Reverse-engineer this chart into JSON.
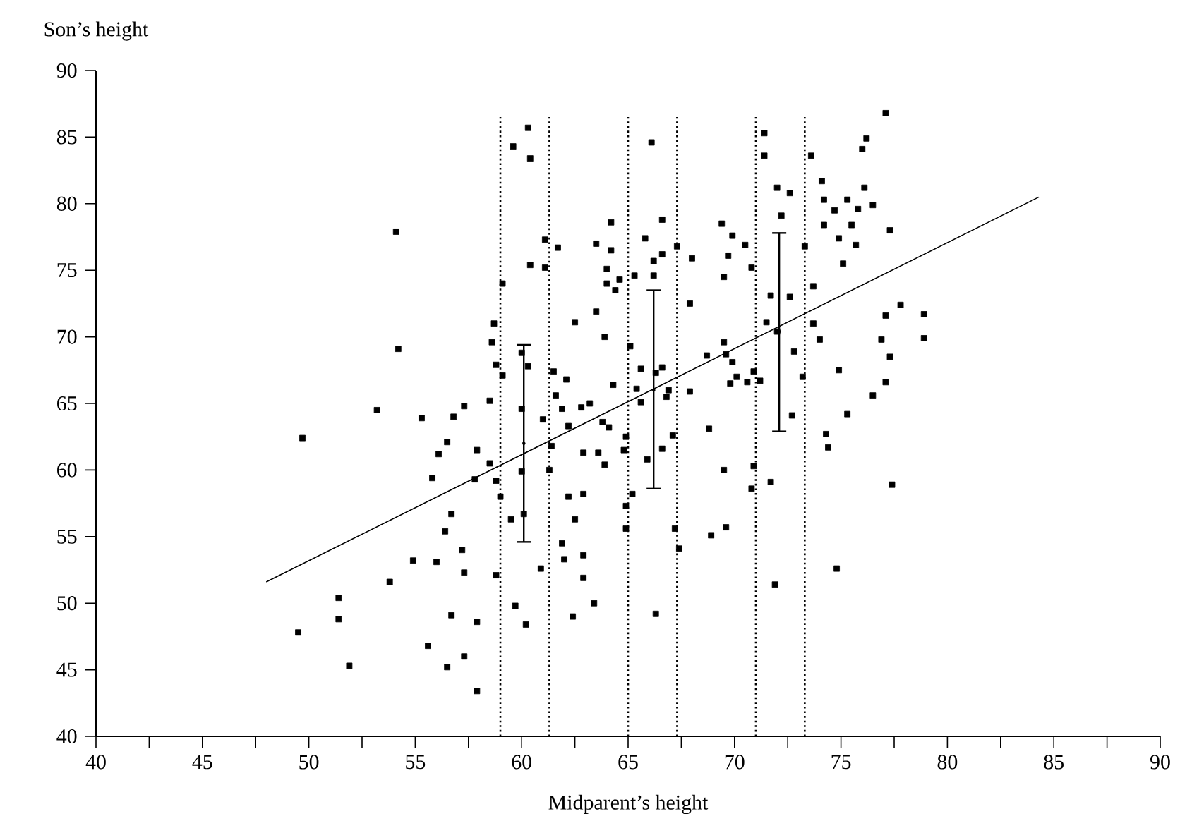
{
  "chart_data": {
    "type": "scatter",
    "xlabel": "Midparent’s height",
    "ylabel": "Son’s height",
    "xlim": [
      40,
      90
    ],
    "ylim": [
      40,
      90
    ],
    "xticks": [
      40,
      {
        "value": 42.5,
        "label": null
      },
      45,
      {
        "value": 47.5,
        "label": null
      },
      50,
      {
        "value": 52.5,
        "label": null
      },
      55,
      {
        "value": 57.5,
        "label": null
      },
      60,
      {
        "value": 62.5,
        "label": null
      },
      65,
      {
        "value": 67.5,
        "label": null
      },
      70,
      {
        "value": 72.5,
        "label": null
      },
      75,
      {
        "value": 77.5,
        "label": null
      },
      80,
      {
        "value": 82.5,
        "label": null
      },
      85,
      {
        "value": 87.5,
        "label": null
      },
      90
    ],
    "yticks": [
      40,
      45,
      50,
      55,
      60,
      65,
      70,
      75,
      80,
      85,
      90
    ],
    "grid": false,
    "series": [
      {
        "type": "scatter",
        "marker": "square",
        "color": "#000000",
        "x": [
          49.5,
          49.7,
          51.4,
          51.4,
          51.9,
          53.2,
          53.8,
          54.1,
          54.2,
          54.9,
          55.3,
          55.6,
          55.8,
          56.0,
          56.1,
          56.4,
          56.5,
          56.5,
          56.7,
          56.7,
          56.8,
          57.2,
          57.3,
          57.3,
          57.3,
          57.8,
          57.9,
          57.9,
          57.9,
          58.5,
          58.5,
          58.6,
          58.7,
          58.8,
          58.8,
          58.8,
          59.0,
          59.1,
          59.1,
          59.5,
          59.6,
          59.7,
          60.0,
          60.0,
          60.0,
          60.1,
          60.2,
          60.3,
          60.3,
          60.4,
          60.4,
          60.9,
          61.0,
          61.1,
          61.1,
          61.3,
          61.4,
          61.5,
          61.6,
          61.7,
          61.9,
          61.9,
          62.0,
          62.1,
          62.2,
          62.2,
          62.4,
          62.5,
          62.5,
          62.8,
          62.9,
          62.9,
          62.9,
          62.9,
          63.2,
          63.4,
          63.5,
          63.5,
          63.6,
          63.8,
          63.9,
          63.9,
          64.0,
          64.0,
          64.1,
          64.2,
          64.2,
          64.3,
          64.4,
          64.6,
          64.8,
          64.9,
          64.9,
          64.9,
          65.1,
          65.2,
          65.3,
          65.4,
          65.6,
          65.6,
          65.8,
          65.9,
          66.1,
          66.2,
          66.2,
          66.3,
          66.3,
          66.6,
          66.6,
          66.6,
          66.6,
          66.8,
          66.9,
          67.1,
          67.2,
          67.3,
          67.4,
          67.9,
          67.9,
          68.0,
          68.7,
          68.8,
          68.9,
          69.4,
          69.5,
          69.5,
          69.5,
          69.6,
          69.6,
          69.7,
          69.8,
          69.9,
          69.9,
          70.1,
          70.5,
          70.6,
          70.8,
          70.9,
          70.9,
          70.8,
          71.2,
          71.4,
          71.4,
          71.5,
          71.7,
          71.7,
          71.9,
          72.0,
          72.0,
          72.2,
          72.6,
          72.6,
          72.7,
          72.8,
          73.2,
          73.3,
          73.6,
          73.7,
          73.7,
          74.0,
          74.1,
          74.2,
          74.2,
          74.3,
          74.4,
          74.7,
          74.8,
          74.9,
          74.9,
          75.1,
          75.3,
          75.3,
          75.5,
          75.7,
          75.8,
          76.0,
          76.1,
          76.2,
          76.5,
          76.5,
          76.9,
          77.1,
          77.1,
          77.1,
          77.3,
          77.3,
          77.4,
          77.8,
          78.9,
          78.9
        ],
        "values": [
          47.8,
          62.4,
          50.4,
          48.8,
          45.3,
          64.5,
          51.6,
          77.9,
          69.1,
          53.2,
          63.9,
          46.8,
          59.4,
          53.1,
          61.2,
          55.4,
          62.1,
          45.2,
          56.7,
          49.1,
          64.0,
          54.0,
          64.8,
          52.3,
          46.0,
          59.3,
          61.5,
          48.6,
          43.4,
          65.2,
          60.5,
          69.6,
          71.0,
          59.2,
          67.9,
          52.1,
          58.0,
          67.1,
          74.0,
          56.3,
          84.3,
          49.8,
          68.8,
          64.6,
          59.9,
          56.7,
          48.4,
          85.7,
          67.8,
          83.4,
          75.4,
          52.6,
          63.8,
          77.3,
          75.2,
          60.0,
          61.8,
          67.4,
          65.6,
          76.7,
          64.6,
          54.5,
          53.3,
          66.8,
          58.0,
          63.3,
          49.0,
          71.1,
          56.3,
          64.7,
          61.3,
          58.2,
          53.6,
          51.9,
          65.0,
          50.0,
          77.0,
          71.9,
          61.3,
          63.6,
          70.0,
          60.4,
          75.1,
          74.0,
          63.2,
          78.6,
          76.5,
          66.4,
          73.5,
          74.3,
          61.5,
          62.5,
          57.3,
          55.6,
          69.3,
          58.2,
          74.6,
          66.1,
          67.6,
          65.1,
          77.4,
          60.8,
          84.6,
          75.7,
          74.6,
          67.3,
          49.2,
          78.8,
          76.2,
          67.7,
          61.6,
          65.5,
          66.0,
          62.6,
          55.6,
          76.8,
          54.1,
          72.5,
          65.9,
          75.9,
          68.6,
          63.1,
          55.1,
          78.5,
          74.5,
          69.6,
          60.0,
          68.7,
          55.7,
          76.1,
          66.5,
          68.1,
          77.6,
          67.0,
          76.9,
          66.6,
          75.2,
          67.4,
          60.3,
          58.6,
          66.7,
          85.3,
          83.6,
          71.1,
          73.1,
          59.1,
          51.4,
          70.4,
          81.2,
          79.1,
          80.8,
          73.0,
          64.1,
          68.9,
          67.0,
          76.8,
          83.6,
          73.8,
          71.0,
          69.8,
          81.7,
          80.3,
          78.4,
          62.7,
          61.7,
          79.5,
          52.6,
          77.4,
          67.5,
          75.5,
          80.3,
          64.2,
          78.4,
          76.9,
          79.6,
          84.1,
          81.2,
          84.9,
          79.9,
          65.6,
          69.8,
          86.8,
          71.6,
          66.6,
          78.0,
          68.5,
          58.9,
          72.4,
          71.7,
          69.9
        ]
      },
      {
        "type": "line",
        "marker": "none",
        "color": "#000000",
        "x": [
          48,
          84.3
        ],
        "values": [
          51.6,
          80.5
        ]
      },
      {
        "marker": "circle",
        "color": "#000000",
        "x": [
          60.1,
          66.2,
          72.1
        ],
        "values": [
          62.0,
          66.0,
          70.4
        ],
        "errors": [
          [
            54.6,
            69.4
          ],
          [
            58.6,
            73.5
          ],
          [
            62.9,
            77.8
          ]
        ]
      }
    ],
    "ref_lines": [
      {
        "axis": "x",
        "value": 59,
        "line_style": "dotted",
        "color": "#000000"
      },
      {
        "axis": "x",
        "value": 61.3,
        "line_style": "dotted",
        "color": "#000000"
      },
      {
        "axis": "x",
        "value": 65,
        "line_style": "dotted",
        "color": "#000000"
      },
      {
        "axis": "x",
        "value": 67.3,
        "line_style": "dotted",
        "color": "#000000"
      },
      {
        "axis": "x",
        "value": 71,
        "line_style": "dotted",
        "color": "#000000"
      },
      {
        "axis": "x",
        "value": 73.3,
        "line_style": "dotted",
        "color": "#000000"
      }
    ]
  }
}
